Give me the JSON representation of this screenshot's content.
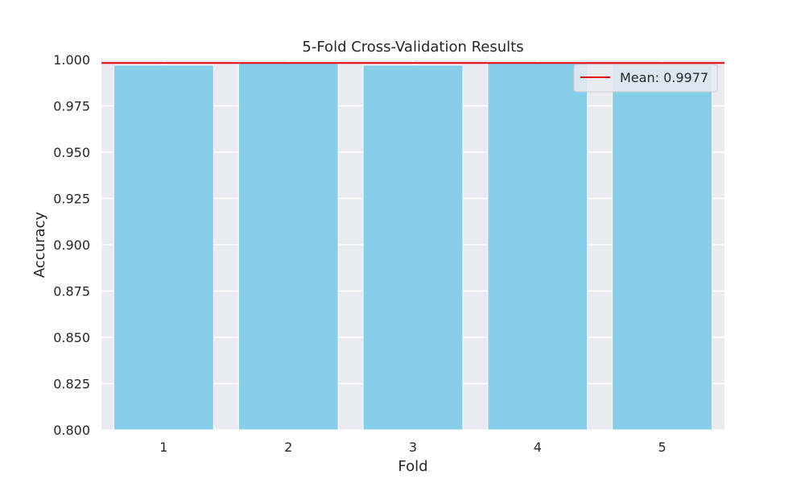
{
  "chart_data": {
    "type": "bar",
    "title": "5-Fold Cross-Validation Results",
    "xlabel": "Fold",
    "ylabel": "Accuracy",
    "categories": [
      "1",
      "2",
      "3",
      "4",
      "5"
    ],
    "values": [
      0.997,
      0.9985,
      0.997,
      0.9985,
      0.997
    ],
    "ylim": [
      0.8,
      1.0
    ],
    "yticks": [
      "0.800",
      "0.825",
      "0.850",
      "0.875",
      "0.900",
      "0.925",
      "0.950",
      "0.975",
      "1.000"
    ],
    "mean_line": {
      "value": 0.9977,
      "label": "Mean: 0.9977",
      "color": "#e8000b"
    },
    "bar_color": "#87ceeb",
    "background_color": "#eaeaf2",
    "grid": true,
    "legend_position": "upper right"
  }
}
